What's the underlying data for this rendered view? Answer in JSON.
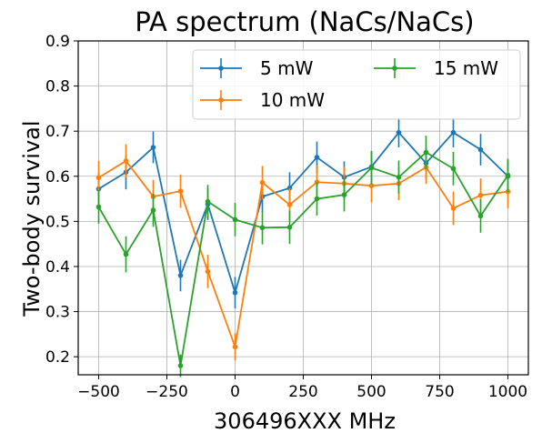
{
  "chart_data": {
    "type": "line",
    "title": "PA spectrum (NaCs/NaCs)",
    "xlabel": "306496XXX MHz",
    "ylabel": "Two-body survival",
    "xlim": [
      -575,
      1075
    ],
    "ylim": [
      0.16,
      0.9
    ],
    "xticks": [
      -500,
      -250,
      0,
      250,
      500,
      750,
      1000
    ],
    "xtick_labels": [
      "−500",
      "−250",
      "0",
      "250",
      "500",
      "750",
      "1000"
    ],
    "yticks": [
      0.2,
      0.3,
      0.4,
      0.5,
      0.6,
      0.7,
      0.8,
      0.9
    ],
    "ytick_labels": [
      "0.2",
      "0.3",
      "0.4",
      "0.5",
      "0.6",
      "0.7",
      "0.8",
      "0.9"
    ],
    "grid": true,
    "legend_position": "top-right",
    "legend_columns": 2,
    "x": [
      -500,
      -400,
      -300,
      -200,
      -100,
      0,
      100,
      200,
      300,
      400,
      500,
      600,
      700,
      800,
      900,
      1000
    ],
    "series": [
      {
        "name": "5 mW",
        "color": "#1f77b4",
        "values": [
          0.572,
          0.609,
          0.664,
          0.38,
          0.538,
          0.342,
          0.555,
          0.574,
          0.642,
          0.598,
          0.621,
          0.697,
          0.629,
          0.697,
          0.659,
          0.6
        ],
        "errors": [
          0.035,
          0.038,
          0.035,
          0.035,
          0.035,
          0.035,
          0.035,
          0.035,
          0.035,
          0.035,
          0.035,
          0.033,
          0.035,
          0.033,
          0.035,
          0.035
        ]
      },
      {
        "name": "10 mW",
        "color": "#ff7f0e",
        "values": [
          0.597,
          0.634,
          0.555,
          0.567,
          0.389,
          0.222,
          0.586,
          0.537,
          0.587,
          0.584,
          0.579,
          0.584,
          0.62,
          0.529,
          0.558,
          0.566
        ],
        "errors": [
          0.037,
          0.037,
          0.037,
          0.037,
          0.037,
          0.03,
          0.037,
          0.037,
          0.037,
          0.037,
          0.037,
          0.037,
          0.037,
          0.037,
          0.037,
          0.037
        ]
      },
      {
        "name": "15 mW",
        "color": "#2ca02c",
        "values": [
          0.532,
          0.427,
          0.525,
          0.18,
          0.544,
          0.504,
          0.486,
          0.487,
          0.55,
          0.559,
          0.619,
          0.598,
          0.653,
          0.617,
          0.512,
          0.602
        ],
        "errors": [
          0.037,
          0.04,
          0.037,
          0.025,
          0.037,
          0.037,
          0.037,
          0.037,
          0.037,
          0.037,
          0.037,
          0.037,
          0.037,
          0.037,
          0.037,
          0.037
        ]
      }
    ]
  }
}
